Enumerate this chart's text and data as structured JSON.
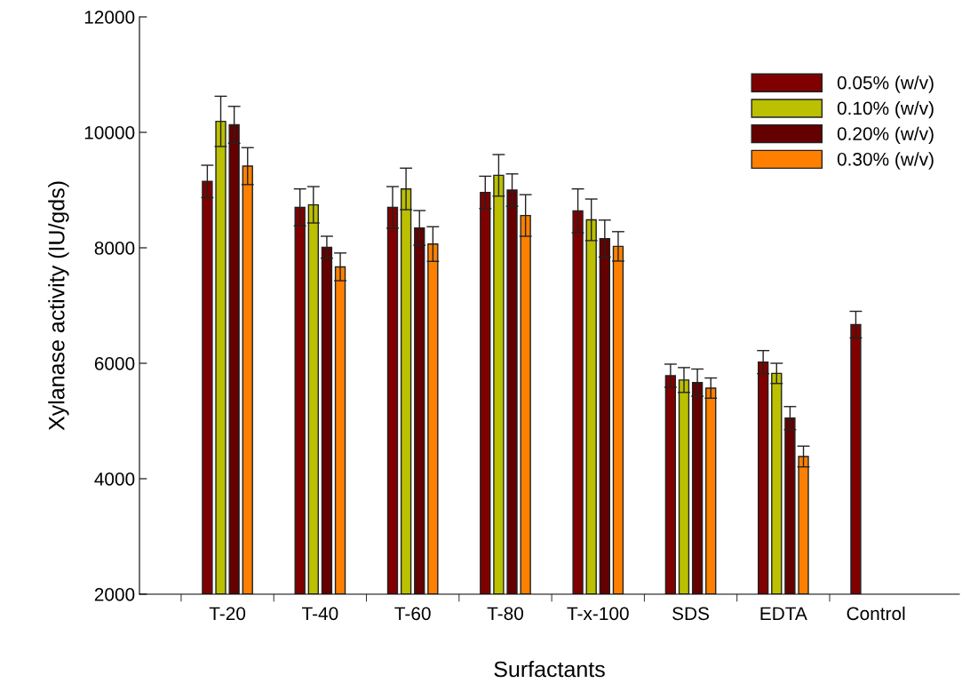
{
  "chart_data": {
    "type": "bar",
    "xlabel": "Surfactants",
    "ylabel": "Xylanase activity (IU/gds)",
    "categories": [
      "T-20",
      "T-40",
      "T-60",
      "T-80",
      "T-x-100",
      "SDS",
      "EDTA",
      "Control"
    ],
    "ylim": [
      2000,
      12000
    ],
    "yticks": [
      2000,
      4000,
      6000,
      8000,
      10000,
      12000
    ],
    "grid": false,
    "legend": "top right",
    "series": [
      {
        "name": "0.05% (w/v)",
        "color": "#800000",
        "values": [
          9150,
          8700,
          8700,
          8960,
          8640,
          5785,
          6020,
          6670
        ],
        "errors": [
          280,
          320,
          360,
          280,
          380,
          200,
          200,
          230
        ]
      },
      {
        "name": "0.10% (w/v)",
        "color": "#bbc000",
        "values": [
          10190,
          8745,
          9020,
          9255,
          8485,
          5710,
          5825,
          null
        ],
        "errors": [
          435,
          315,
          360,
          360,
          360,
          215,
          175,
          null
        ]
      },
      {
        "name": "0.20% (w/v)",
        "color": "#640000",
        "values": [
          10130,
          8010,
          8345,
          9000,
          8160,
          5665,
          5050,
          null
        ],
        "errors": [
          320,
          190,
          300,
          280,
          320,
          235,
          200,
          null
        ]
      },
      {
        "name": "0.30% (w/v)",
        "color": "#ff8000",
        "values": [
          9415,
          7670,
          8065,
          8560,
          8025,
          5570,
          4385,
          null
        ],
        "errors": [
          320,
          240,
          300,
          360,
          255,
          175,
          180,
          null
        ]
      }
    ]
  }
}
